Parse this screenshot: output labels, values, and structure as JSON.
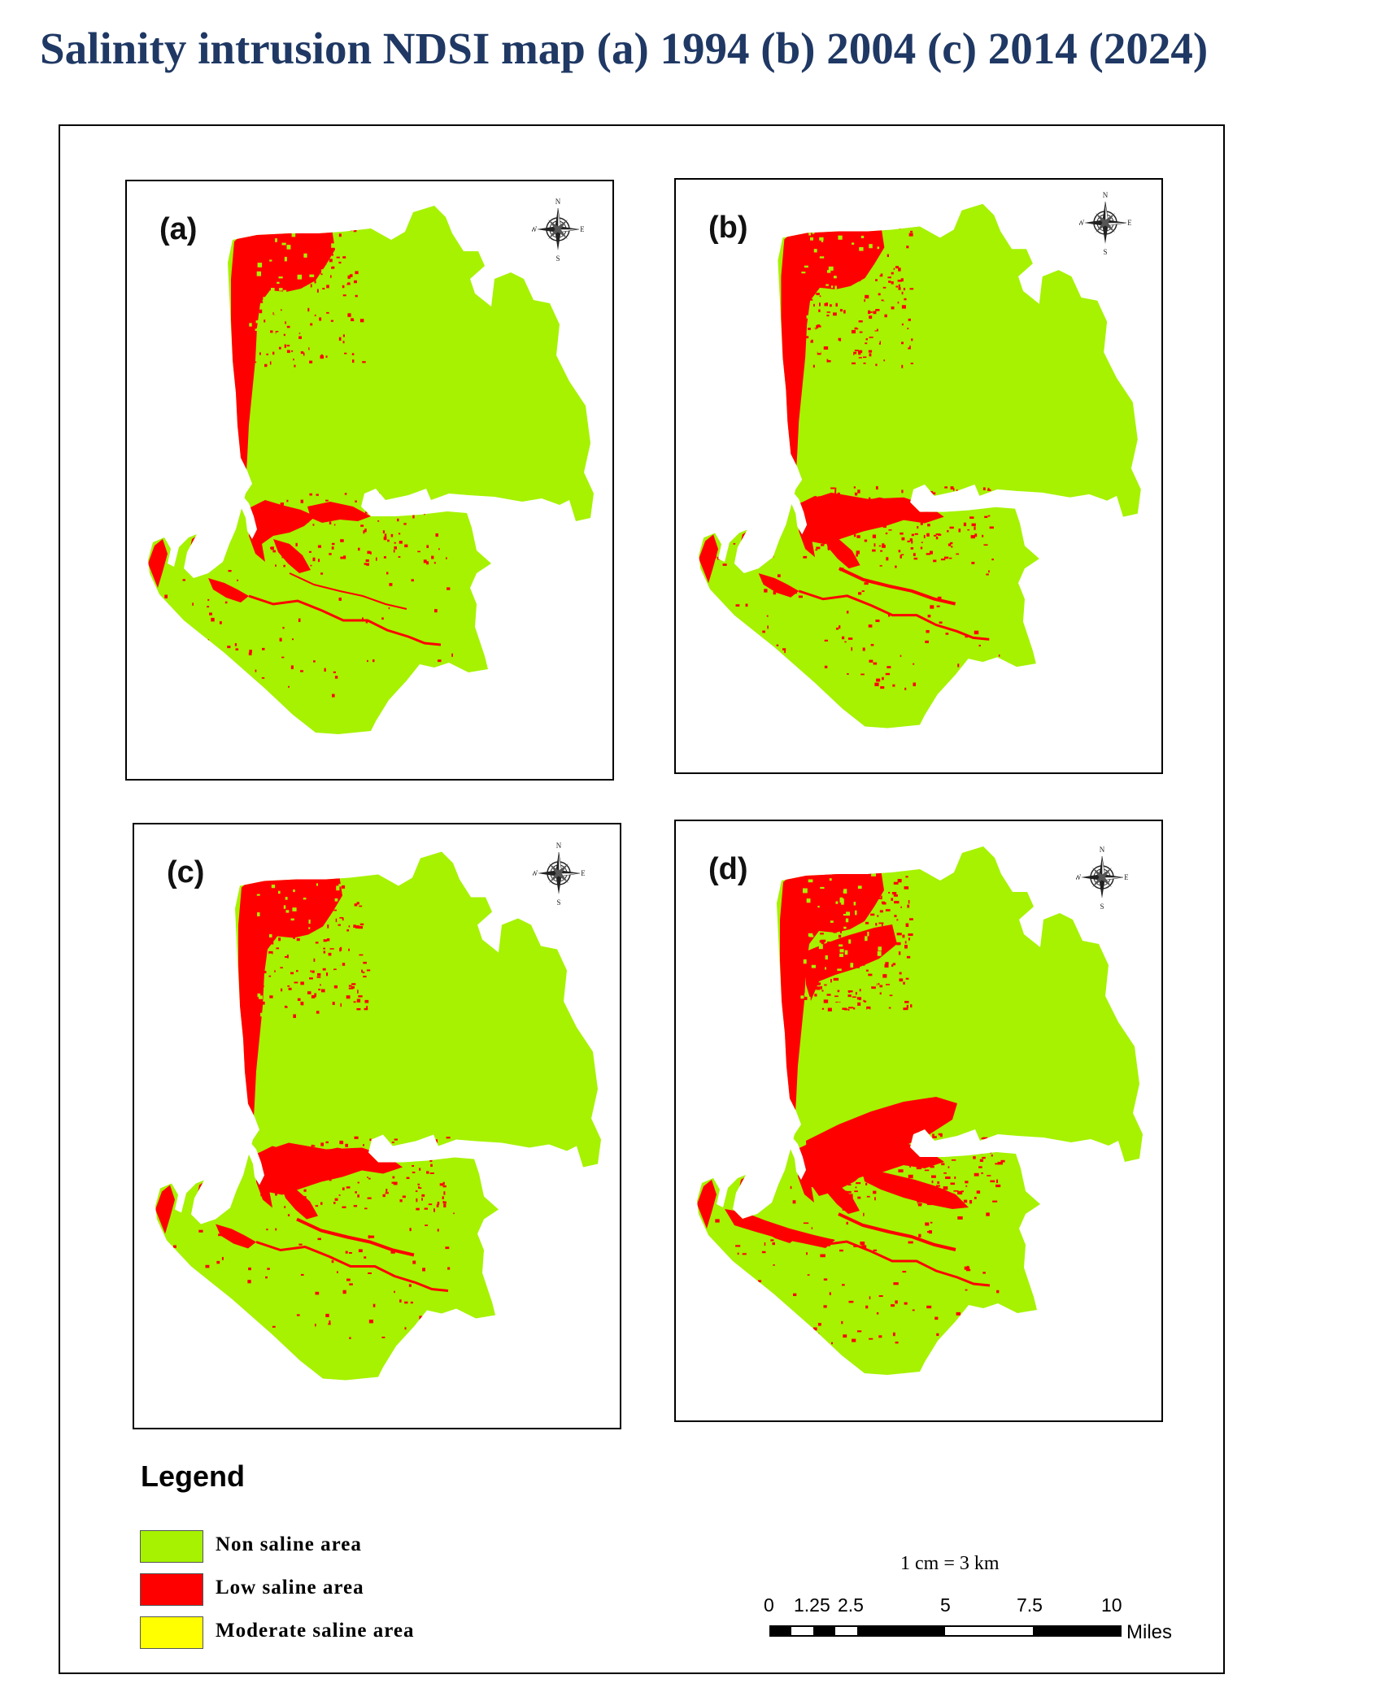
{
  "title": "Salinity intrusion NDSI map (a) 1994 (b) 2004 (c) 2014 (2024)",
  "panels": [
    {
      "label": "(a)",
      "red_level": 1
    },
    {
      "label": "(b)",
      "red_level": 2
    },
    {
      "label": "(c)",
      "red_level": 2
    },
    {
      "label": "(d)",
      "red_level": 3
    }
  ],
  "compass": {
    "n": "N",
    "s": "S",
    "e": "E",
    "w": "W"
  },
  "colors": {
    "non_saline": "#a6f200",
    "low_saline": "#ff0000",
    "moderate_saline": "#ffff00"
  },
  "legend": {
    "title": "Legend",
    "items": [
      {
        "label": "Non saline area",
        "color": "#a6f200"
      },
      {
        "label": "Low saline area",
        "color": "#ff0000"
      },
      {
        "label": "Moderate saline area",
        "color": "#ffff00"
      }
    ]
  },
  "scale": {
    "ratio": "1 cm = 3 km",
    "ticks": [
      "0",
      "1.25",
      "2.5",
      "5",
      "7.5",
      "10"
    ],
    "unit": "Miles"
  }
}
